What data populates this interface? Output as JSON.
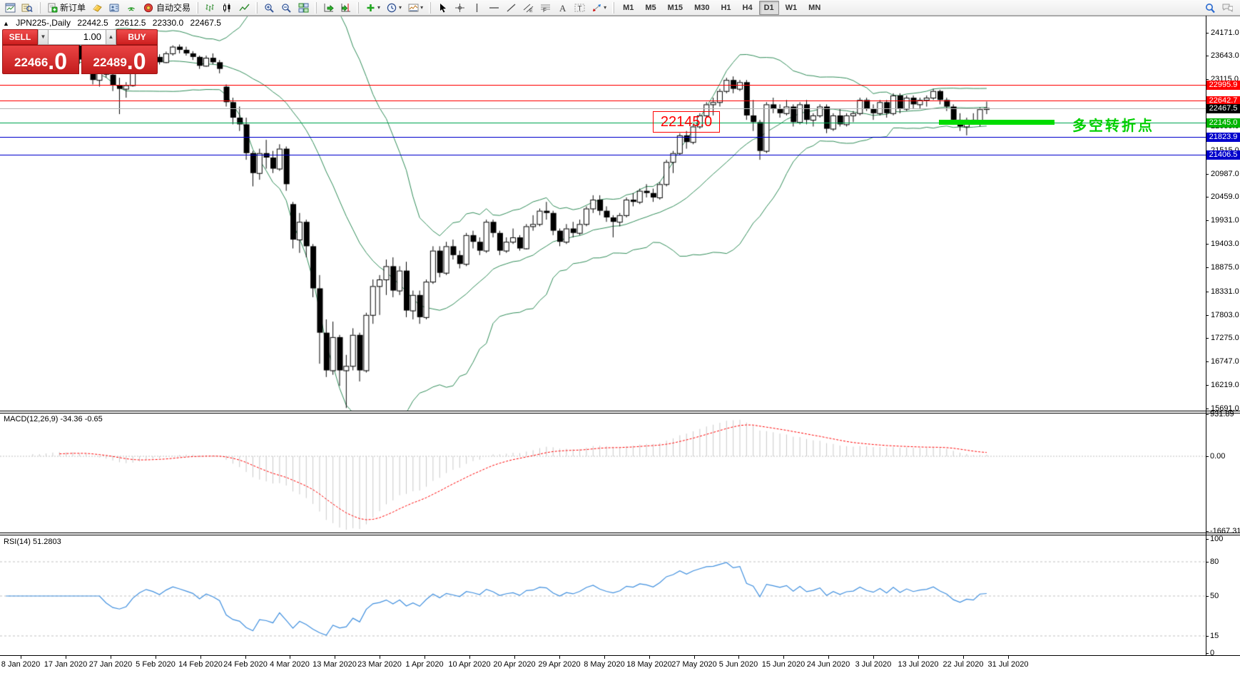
{
  "toolbar": {
    "groups": [
      {
        "items": [
          {
            "icon": "chart-window-icon",
            "name": "new-chart-button"
          },
          {
            "icon": "market-watch-icon",
            "name": "market-watch-button"
          }
        ]
      },
      {
        "items": [
          {
            "icon": "new-order-icon",
            "name": "new-order-button",
            "label": "新订单"
          },
          {
            "icon": "ticket-icon",
            "name": "trade-ticket-button"
          },
          {
            "icon": "terminal-icon",
            "name": "terminal-button"
          },
          {
            "icon": "signals-icon",
            "name": "signals-button"
          },
          {
            "icon": "auto-trading-icon",
            "name": "auto-trading-button",
            "label": "自动交易"
          }
        ]
      },
      {
        "items": [
          {
            "icon": "bar-chart-icon",
            "name": "bar-chart-button"
          },
          {
            "icon": "candlestick-icon",
            "name": "candlestick-chart-button"
          },
          {
            "icon": "line-chart-icon",
            "name": "line-chart-button"
          }
        ]
      },
      {
        "items": [
          {
            "icon": "zoom-in-icon",
            "name": "zoom-in-button"
          },
          {
            "icon": "zoom-out-icon",
            "name": "zoom-out-button"
          },
          {
            "icon": "tile-windows-icon",
            "name": "tile-windows-button"
          }
        ]
      },
      {
        "items": [
          {
            "icon": "auto-scroll-icon",
            "name": "auto-scroll-button"
          },
          {
            "icon": "chart-shift-icon",
            "name": "chart-shift-button"
          }
        ]
      },
      {
        "items": [
          {
            "icon": "indicators-icon",
            "name": "indicators-button",
            "dropdown": true
          },
          {
            "icon": "periods-icon",
            "name": "periods-button",
            "dropdown": true
          },
          {
            "icon": "templates-icon",
            "name": "templates-button",
            "dropdown": true
          }
        ]
      },
      {
        "items": [
          {
            "icon": "cursor-icon",
            "name": "cursor-tool-button"
          },
          {
            "icon": "crosshair-icon",
            "name": "crosshair-tool-button"
          },
          {
            "icon": "vertical-line-icon",
            "name": "vertical-line-tool-button"
          },
          {
            "icon": "horizontal-line-icon",
            "name": "horizontal-line-tool-button"
          },
          {
            "icon": "trendline-icon",
            "name": "trendline-tool-button"
          },
          {
            "icon": "channel-icon",
            "name": "equidistant-channel-tool-button"
          },
          {
            "icon": "fibonacci-icon",
            "name": "fibonacci-tool-button"
          },
          {
            "icon": "text-icon",
            "name": "text-tool-button"
          },
          {
            "icon": "text-label-icon",
            "name": "text-label-tool-button"
          },
          {
            "icon": "arrows-icon",
            "name": "arrows-tool-button",
            "dropdown": true
          }
        ]
      }
    ],
    "timeframes": [
      "M1",
      "M5",
      "M15",
      "M30",
      "H1",
      "H4",
      "D1",
      "W1",
      "MN"
    ],
    "active_timeframe": "D1",
    "right_icons": [
      "search-icon",
      "chat-icon"
    ]
  },
  "symbol_info": {
    "symbol": "JPN225-,Daily",
    "open": "22442.5",
    "high": "22612.5",
    "low": "22330.0",
    "close": "22467.5"
  },
  "trade_panel": {
    "sell_label": "SELL",
    "buy_label": "BUY",
    "volume": "1.00",
    "sell_price": "22466",
    "sell_price_big": ".0",
    "buy_price": "22489",
    "buy_price_big": ".0"
  },
  "annotations": {
    "price_callout": "22145.0",
    "cn_note": "多空转折点"
  },
  "macd": {
    "label": "MACD(12,26,9) -34.36 -0.65",
    "ticks": [
      "931.89",
      "0.00",
      "-1667.31"
    ],
    "tick_values": [
      931.89,
      0,
      -1667.31
    ]
  },
  "rsi": {
    "label": "RSI(14) 51.2803",
    "ticks": [
      "100",
      "80",
      "50",
      "15",
      "0"
    ],
    "tick_values": [
      100,
      80,
      50,
      15,
      0
    ],
    "dashed_levels": [
      80,
      50,
      15
    ]
  },
  "chart_data": {
    "type": "candlestick",
    "symbol": "JPN225-",
    "timeframe": "Daily",
    "levels": [
      {
        "label": "22995.9",
        "value": 22995.9,
        "line_color": "#ff0000",
        "badge_color": "#ff0000"
      },
      {
        "label": "22642.7",
        "value": 22642.7,
        "line_color": "#ff0000",
        "badge_color": "#ff0000"
      },
      {
        "label": "22467.5",
        "value": 22467.5,
        "line_color": "#b4b4b4",
        "badge_color": "#000000"
      },
      {
        "label": "22145.0",
        "value": 22145.0,
        "line_color": "#00a651",
        "badge_color": "#00b400"
      },
      {
        "label": "21823.9",
        "value": 21823.9,
        "line_color": "#0000cc",
        "badge_color": "#0000cc"
      },
      {
        "label": "21406.5",
        "value": 21406.5,
        "line_color": "#0000cc",
        "badge_color": "#0000cc"
      }
    ],
    "y_ticks": [
      {
        "value": 24171.0,
        "label": "24171.0"
      },
      {
        "value": 23643.0,
        "label": "23643.0"
      },
      {
        "value": 23115.0,
        "label": "23115.0"
      },
      {
        "value": 22587.0,
        "label": ""
      },
      {
        "value": 22059.0,
        "label": "22059.0"
      },
      {
        "value": 21515.0,
        "label": "21515.0"
      },
      {
        "value": 20987.0,
        "label": "20987.0"
      },
      {
        "value": 20459.0,
        "label": "20459.0"
      },
      {
        "value": 19931.0,
        "label": "19931.0"
      },
      {
        "value": 19403.0,
        "label": "19403.0"
      },
      {
        "value": 18875.0,
        "label": "18875.0"
      },
      {
        "value": 18331.0,
        "label": "18331.0"
      },
      {
        "value": 17803.0,
        "label": "17803.0"
      },
      {
        "value": 17275.0,
        "label": "17275.0"
      },
      {
        "value": 16747.0,
        "label": "16747.0"
      },
      {
        "value": 16219.0,
        "label": "16219.0"
      },
      {
        "value": 15691.0,
        "label": "15691.0"
      }
    ],
    "x_labels": [
      "8 Jan 2020",
      "17 Jan 2020",
      "27 Jan 2020",
      "5 Feb 2020",
      "14 Feb 2020",
      "24 Feb 2020",
      "4 Mar 2020",
      "13 Mar 2020",
      "23 Mar 2020",
      "1 Apr 2020",
      "10 Apr 2020",
      "20 Apr 2020",
      "29 Apr 2020",
      "8 May 2020",
      "18 May 2020",
      "27 May 2020",
      "5 Jun 2020",
      "15 Jun 2020",
      "24 Jun 2020",
      "3 Jul 2020",
      "13 Jul 2020",
      "22 Jul 2020",
      "31 Jul 2020"
    ],
    "indicators": {
      "bollinger": {
        "period": 20,
        "deviation": 2,
        "color": "#2e8b57"
      },
      "macd": {
        "fast": 12,
        "slow": 26,
        "signal": 9,
        "current": "-34.36",
        "signal_current": "-0.65"
      },
      "rsi": {
        "period": 14,
        "current": "51.2803"
      }
    },
    "candles": [
      [
        23350,
        23590,
        23300,
        23550
      ],
      [
        23550,
        23780,
        23500,
        23730
      ],
      [
        23730,
        23850,
        23600,
        23680
      ],
      [
        23680,
        23900,
        23650,
        23850
      ],
      [
        23850,
        23950,
        23700,
        23760
      ],
      [
        23760,
        23870,
        23630,
        23700
      ],
      [
        23700,
        23930,
        23680,
        23900
      ],
      [
        23900,
        24040,
        23820,
        23980
      ],
      [
        23980,
        24080,
        23900,
        24000
      ],
      [
        24000,
        24050,
        23680,
        23750
      ],
      [
        23750,
        23930,
        23700,
        23880
      ],
      [
        23880,
        23900,
        23460,
        23560
      ],
      [
        23560,
        23820,
        23500,
        23790
      ],
      [
        23500,
        23550,
        23000,
        23100
      ],
      [
        23100,
        23350,
        22950,
        23300
      ],
      [
        23300,
        23400,
        23150,
        23220
      ],
      [
        23220,
        23280,
        22850,
        22980
      ],
      [
        22980,
        23150,
        22330,
        22900
      ],
      [
        22900,
        23050,
        22700,
        22980
      ],
      [
        22980,
        23320,
        22950,
        23300
      ],
      [
        23300,
        23560,
        23280,
        23540
      ],
      [
        23540,
        23750,
        23500,
        23700
      ],
      [
        23700,
        23780,
        23550,
        23620
      ],
      [
        23620,
        23680,
        23450,
        23500
      ],
      [
        23500,
        23740,
        23480,
        23700
      ],
      [
        23700,
        23880,
        23650,
        23850
      ],
      [
        23850,
        23900,
        23700,
        23780
      ],
      [
        23780,
        23850,
        23650,
        23700
      ],
      [
        23700,
        23750,
        23550,
        23620
      ],
      [
        23620,
        23650,
        23350,
        23420
      ],
      [
        23420,
        23650,
        23400,
        23600
      ],
      [
        23600,
        23700,
        23450,
        23500
      ],
      [
        23500,
        23550,
        23250,
        23350
      ],
      [
        22950,
        23000,
        22500,
        22600
      ],
      [
        22600,
        22700,
        22100,
        22250
      ],
      [
        22250,
        22500,
        21950,
        22100
      ],
      [
        22100,
        22250,
        21300,
        21450
      ],
      [
        21450,
        21500,
        20700,
        21000
      ],
      [
        21000,
        21550,
        20850,
        21450
      ],
      [
        21450,
        21750,
        21100,
        21350
      ],
      [
        21350,
        21500,
        21000,
        21100
      ],
      [
        21100,
        21650,
        21050,
        21550
      ],
      [
        21550,
        21600,
        20600,
        20750
      ],
      [
        20300,
        20350,
        19300,
        19500
      ],
      [
        19500,
        20100,
        19200,
        19900
      ],
      [
        19900,
        19950,
        19100,
        19350
      ],
      [
        19350,
        19400,
        18200,
        18400
      ],
      [
        18400,
        18700,
        16700,
        17400
      ],
      [
        17400,
        17700,
        16400,
        16550
      ],
      [
        16550,
        17650,
        16450,
        17300
      ],
      [
        17300,
        17350,
        16200,
        16550
      ],
      [
        16550,
        16900,
        15700,
        16650
      ],
      [
        16650,
        17500,
        16550,
        17350
      ],
      [
        17350,
        17400,
        16300,
        16550
      ],
      [
        16550,
        17850,
        16500,
        17800
      ],
      [
        17800,
        18600,
        17600,
        18450
      ],
      [
        18450,
        18700,
        17800,
        18600
      ],
      [
        18600,
        19050,
        18250,
        18900
      ],
      [
        18900,
        19100,
        18200,
        18350
      ],
      [
        18350,
        18900,
        18250,
        18800
      ],
      [
        18800,
        19000,
        17750,
        17900
      ],
      [
        17900,
        18350,
        17700,
        18250
      ],
      [
        18250,
        18350,
        17600,
        17750
      ],
      [
        17750,
        18600,
        17700,
        18550
      ],
      [
        18550,
        19350,
        18500,
        19250
      ],
      [
        19250,
        19350,
        18650,
        18750
      ],
      [
        18750,
        19450,
        18700,
        19350
      ],
      [
        19350,
        19500,
        19050,
        19150
      ],
      [
        19150,
        19250,
        18850,
        18950
      ],
      [
        18950,
        19650,
        18900,
        19600
      ],
      [
        19600,
        19700,
        19300,
        19450
      ],
      [
        19450,
        19550,
        19150,
        19250
      ],
      [
        19250,
        19950,
        19200,
        19900
      ],
      [
        19900,
        19950,
        19550,
        19650
      ],
      [
        19650,
        19700,
        19150,
        19250
      ],
      [
        19250,
        19550,
        19200,
        19450
      ],
      [
        19450,
        19750,
        19400,
        19550
      ],
      [
        19550,
        19600,
        19250,
        19300
      ],
      [
        19300,
        19850,
        19280,
        19800
      ],
      [
        19800,
        20050,
        19700,
        19850
      ],
      [
        19850,
        20200,
        19800,
        20150
      ],
      [
        20150,
        20350,
        19950,
        20100
      ],
      [
        20100,
        20150,
        19600,
        19700
      ],
      [
        19700,
        19750,
        19350,
        19450
      ],
      [
        19450,
        19850,
        19400,
        19750
      ],
      [
        19750,
        19900,
        19550,
        19650
      ],
      [
        19650,
        19950,
        19600,
        19850
      ],
      [
        19850,
        20250,
        19800,
        20200
      ],
      [
        20200,
        20500,
        20100,
        20400
      ],
      [
        20400,
        20500,
        20050,
        20150
      ],
      [
        20150,
        20250,
        19900,
        20000
      ],
      [
        20000,
        20050,
        19550,
        19900
      ],
      [
        19900,
        20100,
        19800,
        20050
      ],
      [
        20050,
        20450,
        20000,
        20400
      ],
      [
        20400,
        20550,
        20250,
        20350
      ],
      [
        20350,
        20650,
        20300,
        20600
      ],
      [
        20600,
        20750,
        20450,
        20550
      ],
      [
        20550,
        20650,
        20350,
        20450
      ],
      [
        20450,
        20800,
        20400,
        20750
      ],
      [
        20750,
        21300,
        20700,
        21250
      ],
      [
        21250,
        21500,
        21000,
        21450
      ],
      [
        21450,
        21900,
        21400,
        21850
      ],
      [
        21850,
        21950,
        21550,
        21700
      ],
      [
        21700,
        22100,
        21650,
        22050
      ],
      [
        22050,
        22350,
        22000,
        22300
      ],
      [
        22300,
        22600,
        22250,
        22550
      ],
      [
        22550,
        22700,
        22300,
        22600
      ],
      [
        22600,
        22900,
        22500,
        22850
      ],
      [
        22850,
        23150,
        22800,
        23100
      ],
      [
        23100,
        23180,
        22800,
        22900
      ],
      [
        22900,
        23100,
        22850,
        23050
      ],
      [
        23050,
        23100,
        22200,
        22300
      ],
      [
        22300,
        22650,
        21950,
        22150
      ],
      [
        22150,
        22200,
        21300,
        21500
      ],
      [
        21500,
        22600,
        21450,
        22550
      ],
      [
        22550,
        22700,
        22350,
        22450
      ],
      [
        22450,
        22550,
        22250,
        22350
      ],
      [
        22350,
        22650,
        22300,
        22500
      ],
      [
        22500,
        22550,
        22050,
        22150
      ],
      [
        22150,
        22600,
        22100,
        22550
      ],
      [
        22550,
        22650,
        22100,
        22200
      ],
      [
        22200,
        22350,
        22050,
        22300
      ],
      [
        22300,
        22550,
        22250,
        22500
      ],
      [
        22500,
        22550,
        21900,
        22000
      ],
      [
        22000,
        22350,
        21950,
        22300
      ],
      [
        22300,
        22450,
        22050,
        22100
      ],
      [
        22100,
        22350,
        22050,
        22300
      ],
      [
        22300,
        22400,
        22150,
        22350
      ],
      [
        22350,
        22700,
        22300,
        22650
      ],
      [
        22650,
        22700,
        22400,
        22450
      ],
      [
        22450,
        22550,
        22200,
        22350
      ],
      [
        22350,
        22650,
        22300,
        22600
      ],
      [
        22600,
        22650,
        22250,
        22350
      ],
      [
        22350,
        22800,
        22300,
        22750
      ],
      [
        22750,
        22800,
        22350,
        22450
      ],
      [
        22450,
        22750,
        22400,
        22700
      ],
      [
        22700,
        22750,
        22450,
        22550
      ],
      [
        22550,
        22700,
        22450,
        22650
      ],
      [
        22650,
        22750,
        22500,
        22700
      ],
      [
        22700,
        22900,
        22650,
        22850
      ],
      [
        22850,
        22880,
        22550,
        22650
      ],
      [
        22650,
        22700,
        22400,
        22500
      ],
      [
        22500,
        22550,
        22100,
        22200
      ],
      [
        22200,
        22350,
        21950,
        22050
      ],
      [
        22050,
        22250,
        21850,
        22200
      ],
      [
        22200,
        22350,
        22100,
        22150
      ],
      [
        22150,
        22480,
        22050,
        22440
      ],
      [
        22442,
        22612,
        22330,
        22467
      ]
    ]
  }
}
